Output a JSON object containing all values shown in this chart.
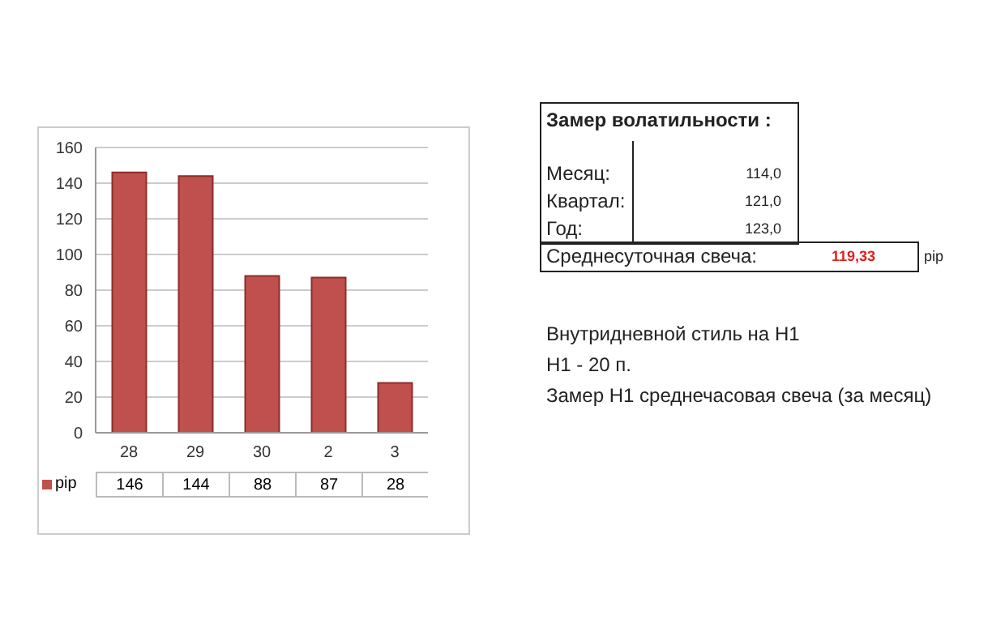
{
  "chart_data": [
    {
      "type": "bar",
      "categories": [
        "28",
        "29",
        "30",
        "2",
        "3"
      ],
      "series": [
        {
          "name": "pip",
          "color": "#c0504d",
          "values": [
            146,
            144,
            88,
            87,
            28
          ]
        }
      ],
      "ylim": [
        0,
        160
      ],
      "yticks": [
        0,
        20,
        40,
        60,
        80,
        100,
        120,
        140,
        160
      ],
      "grid": "y",
      "legend": "bottom",
      "data_labels": true
    },
    {
      "type": "other",
      "title": "Замер  волатильности :",
      "annotations": [
        "Месяц:",
        "114,0",
        "Квартал:",
        "121,0",
        "Год:",
        "123,0",
        "Среднесуточная свеча:",
        "119,33",
        "pip",
        "Внутридневной стиль на H1",
        "H1 - 20 п.",
        "Замер H1 среднечасовая свеча (за месяц)"
      ]
    }
  ]
}
